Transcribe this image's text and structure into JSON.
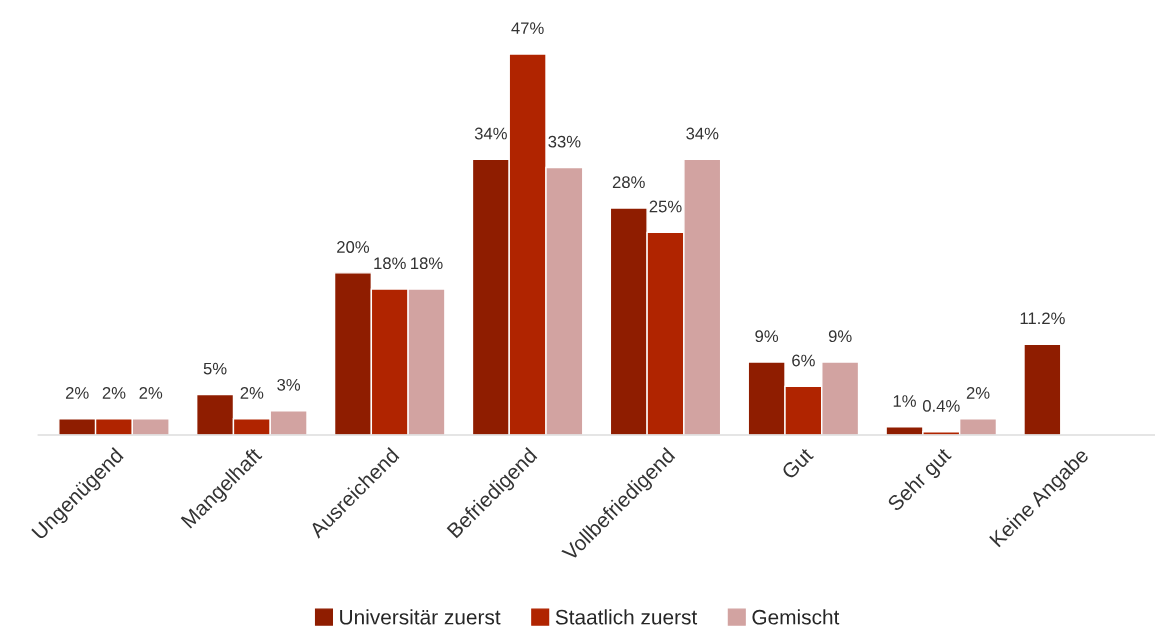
{
  "chart_data": {
    "type": "bar",
    "categories": [
      "Ungenügend",
      "Mangelhaft",
      "Ausreichend",
      "Befriedigend",
      "Vollbefriedigend",
      "Gut",
      "Sehr gut",
      "Keine Angabe"
    ],
    "series": [
      {
        "name": "Universitär zuerst",
        "color": "#8f1d00",
        "values": [
          2,
          5,
          20,
          34,
          28,
          9,
          1,
          11.2
        ],
        "value_labels": [
          "2%",
          "5%",
          "20%",
          "34%",
          "28%",
          "9%",
          "1%",
          "11.2%"
        ]
      },
      {
        "name": "Staatlich zuerst",
        "color": "#b02400",
        "values": [
          2,
          2,
          18,
          47,
          25,
          6,
          0.4,
          null
        ],
        "value_labels": [
          "2%",
          "2%",
          "18%",
          "47%",
          "25%",
          "6%",
          "0.4%",
          null
        ]
      },
      {
        "name": "Gemischt",
        "color": "#d2a3a1",
        "values": [
          2,
          3,
          18,
          33,
          34,
          9,
          2,
          null
        ],
        "value_labels": [
          "2%",
          "3%",
          "18%",
          "33%",
          "34%",
          "9%",
          "2%",
          null
        ]
      }
    ],
    "legend": "bottom",
    "grid": false
  }
}
